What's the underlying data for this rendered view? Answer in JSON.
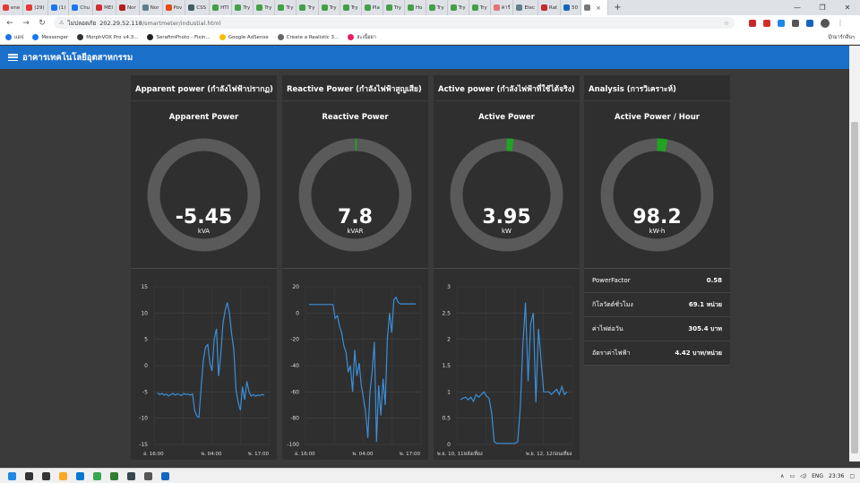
{
  "browser": {
    "tabs": [
      {
        "label": "ene",
        "color": "#e53935"
      },
      {
        "label": "(29)",
        "color": "#e53935"
      },
      {
        "label": "(1)",
        "color": "#1877f2"
      },
      {
        "label": "Chu",
        "color": "#1877f2"
      },
      {
        "label": "MEI",
        "color": "#d32f2f"
      },
      {
        "label": "Nor",
        "color": "#b71c1c"
      },
      {
        "label": "Nor",
        "color": "#607d8b"
      },
      {
        "label": "Pov",
        "color": "#e64a19"
      },
      {
        "label": "CSS",
        "color": "#455a64"
      },
      {
        "label": "HTI",
        "color": "#43a047"
      },
      {
        "label": "Try",
        "color": "#43a047"
      },
      {
        "label": "Try",
        "color": "#43a047"
      },
      {
        "label": "Try",
        "color": "#43a047"
      },
      {
        "label": "Try",
        "color": "#43a047"
      },
      {
        "label": "Try",
        "color": "#43a047"
      },
      {
        "label": "Try",
        "color": "#43a047"
      },
      {
        "label": "Pla",
        "color": "#43a047"
      },
      {
        "label": "Try",
        "color": "#43a047"
      },
      {
        "label": "Ho",
        "color": "#43a047"
      },
      {
        "label": "Try",
        "color": "#43a047"
      },
      {
        "label": "Try",
        "color": "#43a047"
      },
      {
        "label": "Try",
        "color": "#43a047"
      },
      {
        "label": "คาร์",
        "color": "#e57373"
      },
      {
        "label": "Elec",
        "color": "#607d8b"
      },
      {
        "label": "Rat",
        "color": "#c62828"
      },
      {
        "label": "50",
        "color": "#1565c0"
      }
    ],
    "active_tab_close": "×",
    "new_tab": "+",
    "window_controls": {
      "minimize": "—",
      "maximize": "❐",
      "close": "✕"
    },
    "address": {
      "security_label": "ไม่ปลอดภัย",
      "url_host": "202.29.52.118",
      "url_path": "/smartmeter/industial.html"
    },
    "bookmarks": [
      {
        "label": "แอป",
        "color": "#1a73e8"
      },
      {
        "label": "Messenger",
        "color": "#1877f2"
      },
      {
        "label": "MorphVOX Pro v4.3...",
        "color": "#333333"
      },
      {
        "label": "SerafimPhoto - Fixin...",
        "color": "#222222"
      },
      {
        "label": "Google AdSense",
        "color": "#fbbc05"
      },
      {
        "label": "Create a Realistic 3...",
        "color": "#666666"
      },
      {
        "label": "สะเนื้อยา",
        "color": "#e91e63"
      }
    ],
    "other_bookmarks": "บุ๊กมาร์กอื่นๆ"
  },
  "app": {
    "title": "อาคารเทคโนโลยีอุตสาหกรรม",
    "header_color": "#1a6fc9"
  },
  "panels": [
    {
      "title": "Apparent power (กำลังไฟฟ้าปรากฏ)",
      "gauge": {
        "title": "Apparent Power",
        "value": "-5.45",
        "unit": "kVA",
        "fraction": 0.0,
        "fill_color": "#21a221"
      }
    },
    {
      "title": "Reactive Power (กำลังไฟฟ้าสูญเสีย)",
      "gauge": {
        "title": "Reactive Power",
        "value": "7.8",
        "unit": "kVAR",
        "fraction": 0.005,
        "fill_color": "#21a221"
      }
    },
    {
      "title": "Active power (กำลังไฟฟ้าที่ใช้ได้จริง)",
      "gauge": {
        "title": "Active Power",
        "value": "3.95",
        "unit": "kW",
        "fraction": 0.02,
        "fill_color": "#21a221"
      }
    },
    {
      "title": "Analysis (การวิเคราะห์)",
      "gauge": {
        "title": "Active Power / Hour",
        "value": "98.2",
        "unit": "kW-h",
        "fraction": 0.03,
        "fill_color": "#21a221"
      },
      "info": [
        {
          "label": "PowerFactor",
          "value": "0.58"
        },
        {
          "label": "กิโลวัตต์ชั่วโมง",
          "value": "69.1 หน่วย"
        },
        {
          "label": "ค่าไฟต่อวัน",
          "value": "305.4 บาท"
        },
        {
          "label": "อัตราค่าไฟฟ้า",
          "value": "4.42 บาท/หน่วย"
        }
      ]
    }
  ],
  "chart_data": [
    {
      "type": "line",
      "title": "",
      "yticks": [
        "15",
        "10",
        "5",
        "0",
        "-5",
        "-10",
        "-15"
      ],
      "ylim": [
        -15,
        15
      ],
      "xticks": [
        "อ. 16:00",
        "พ. 04:00",
        "พ. 17:00"
      ],
      "series": [
        {
          "color": "#3b8fd9",
          "values": [
            -5.2,
            -5.5,
            -5.3,
            -5.6,
            -5.4,
            -5.8,
            -5.5,
            -5.3,
            -5.6,
            -5.4,
            -5.5,
            -5.7,
            -5.3,
            -5.5,
            -5.4,
            -5.6,
            -5.4,
            -8.5,
            -9.6,
            -9.8,
            -4,
            1,
            3.5,
            4,
            0.5,
            -1,
            5,
            7,
            -2,
            2,
            8,
            10.5,
            12,
            10,
            6,
            3,
            -4.5,
            -7,
            -8.5,
            -4,
            -6.5,
            -3,
            -5,
            -5.8,
            -5.5,
            -5.8,
            -5.6,
            -5.7,
            -5.5,
            -5.6
          ]
        }
      ]
    },
    {
      "type": "line",
      "title": "",
      "yticks": [
        "20",
        "0",
        "-20",
        "-40",
        "-60",
        "-80",
        "-100"
      ],
      "ylim": [
        -100,
        20
      ],
      "xticks": [
        "อ. 16:00",
        "พ. 04:00",
        "พ. 17:00"
      ],
      "series": [
        {
          "color": "#3b8fd9",
          "values": [
            6.5,
            6.5,
            6.5,
            6.5,
            6.5,
            6.5,
            6.5,
            6.5,
            6.5,
            6.5,
            6.5,
            6.5,
            -4,
            -2,
            -10,
            -15,
            -25,
            -30,
            -45,
            -40,
            -60,
            -28,
            -48,
            -38,
            -55,
            -65,
            -75,
            -95,
            -60,
            -45,
            -22,
            -98,
            -55,
            -78,
            -50,
            -70,
            -20,
            0,
            -15,
            10,
            12,
            8,
            7,
            7,
            7,
            7,
            7,
            7,
            7,
            7
          ]
        }
      ]
    },
    {
      "type": "line",
      "title": "",
      "yticks": [
        "3",
        "2.5",
        "2",
        "1.5",
        "1",
        "0.5",
        "0"
      ],
      "ylim": [
        0,
        3
      ],
      "xticks": [
        "พ.ย. 10, 11หลังเที่ยง",
        "พ.ย. 12, 12ก่อนเที่ยง"
      ],
      "series": [
        {
          "color": "#3b8fd9",
          "values": [
            0.85,
            0.88,
            0.9,
            0.85,
            0.9,
            0.82,
            0.95,
            0.9,
            0.95,
            1.0,
            0.92,
            0.88,
            0.6,
            0.05,
            0.02,
            0.02,
            0.02,
            0.02,
            0.02,
            0.02,
            0.02,
            0.02,
            0.05,
            0.7,
            1.9,
            2.7,
            1.2,
            2.3,
            2.5,
            0.8,
            2.2,
            1.6,
            1.0,
            1.0,
            1.0,
            0.95,
            1.0,
            1.05,
            0.95,
            1.1,
            0.95,
            1.0
          ]
        }
      ]
    }
  ],
  "taskbar": {
    "apps": [
      {
        "name": "windows",
        "color": "#1e88e5"
      },
      {
        "name": "search",
        "color": "#333333"
      },
      {
        "name": "task-view",
        "color": "#333333"
      },
      {
        "name": "explorer",
        "color": "#f9a825"
      },
      {
        "name": "store",
        "color": "#0078d4"
      },
      {
        "name": "chrome",
        "color": "#34a853"
      },
      {
        "name": "terminal",
        "color": "#2e7d32"
      },
      {
        "name": "app",
        "color": "#37474f"
      },
      {
        "name": "settings",
        "color": "#555555"
      },
      {
        "name": "word",
        "color": "#1565c0"
      }
    ],
    "lang": "ENG",
    "time": "23:36"
  }
}
